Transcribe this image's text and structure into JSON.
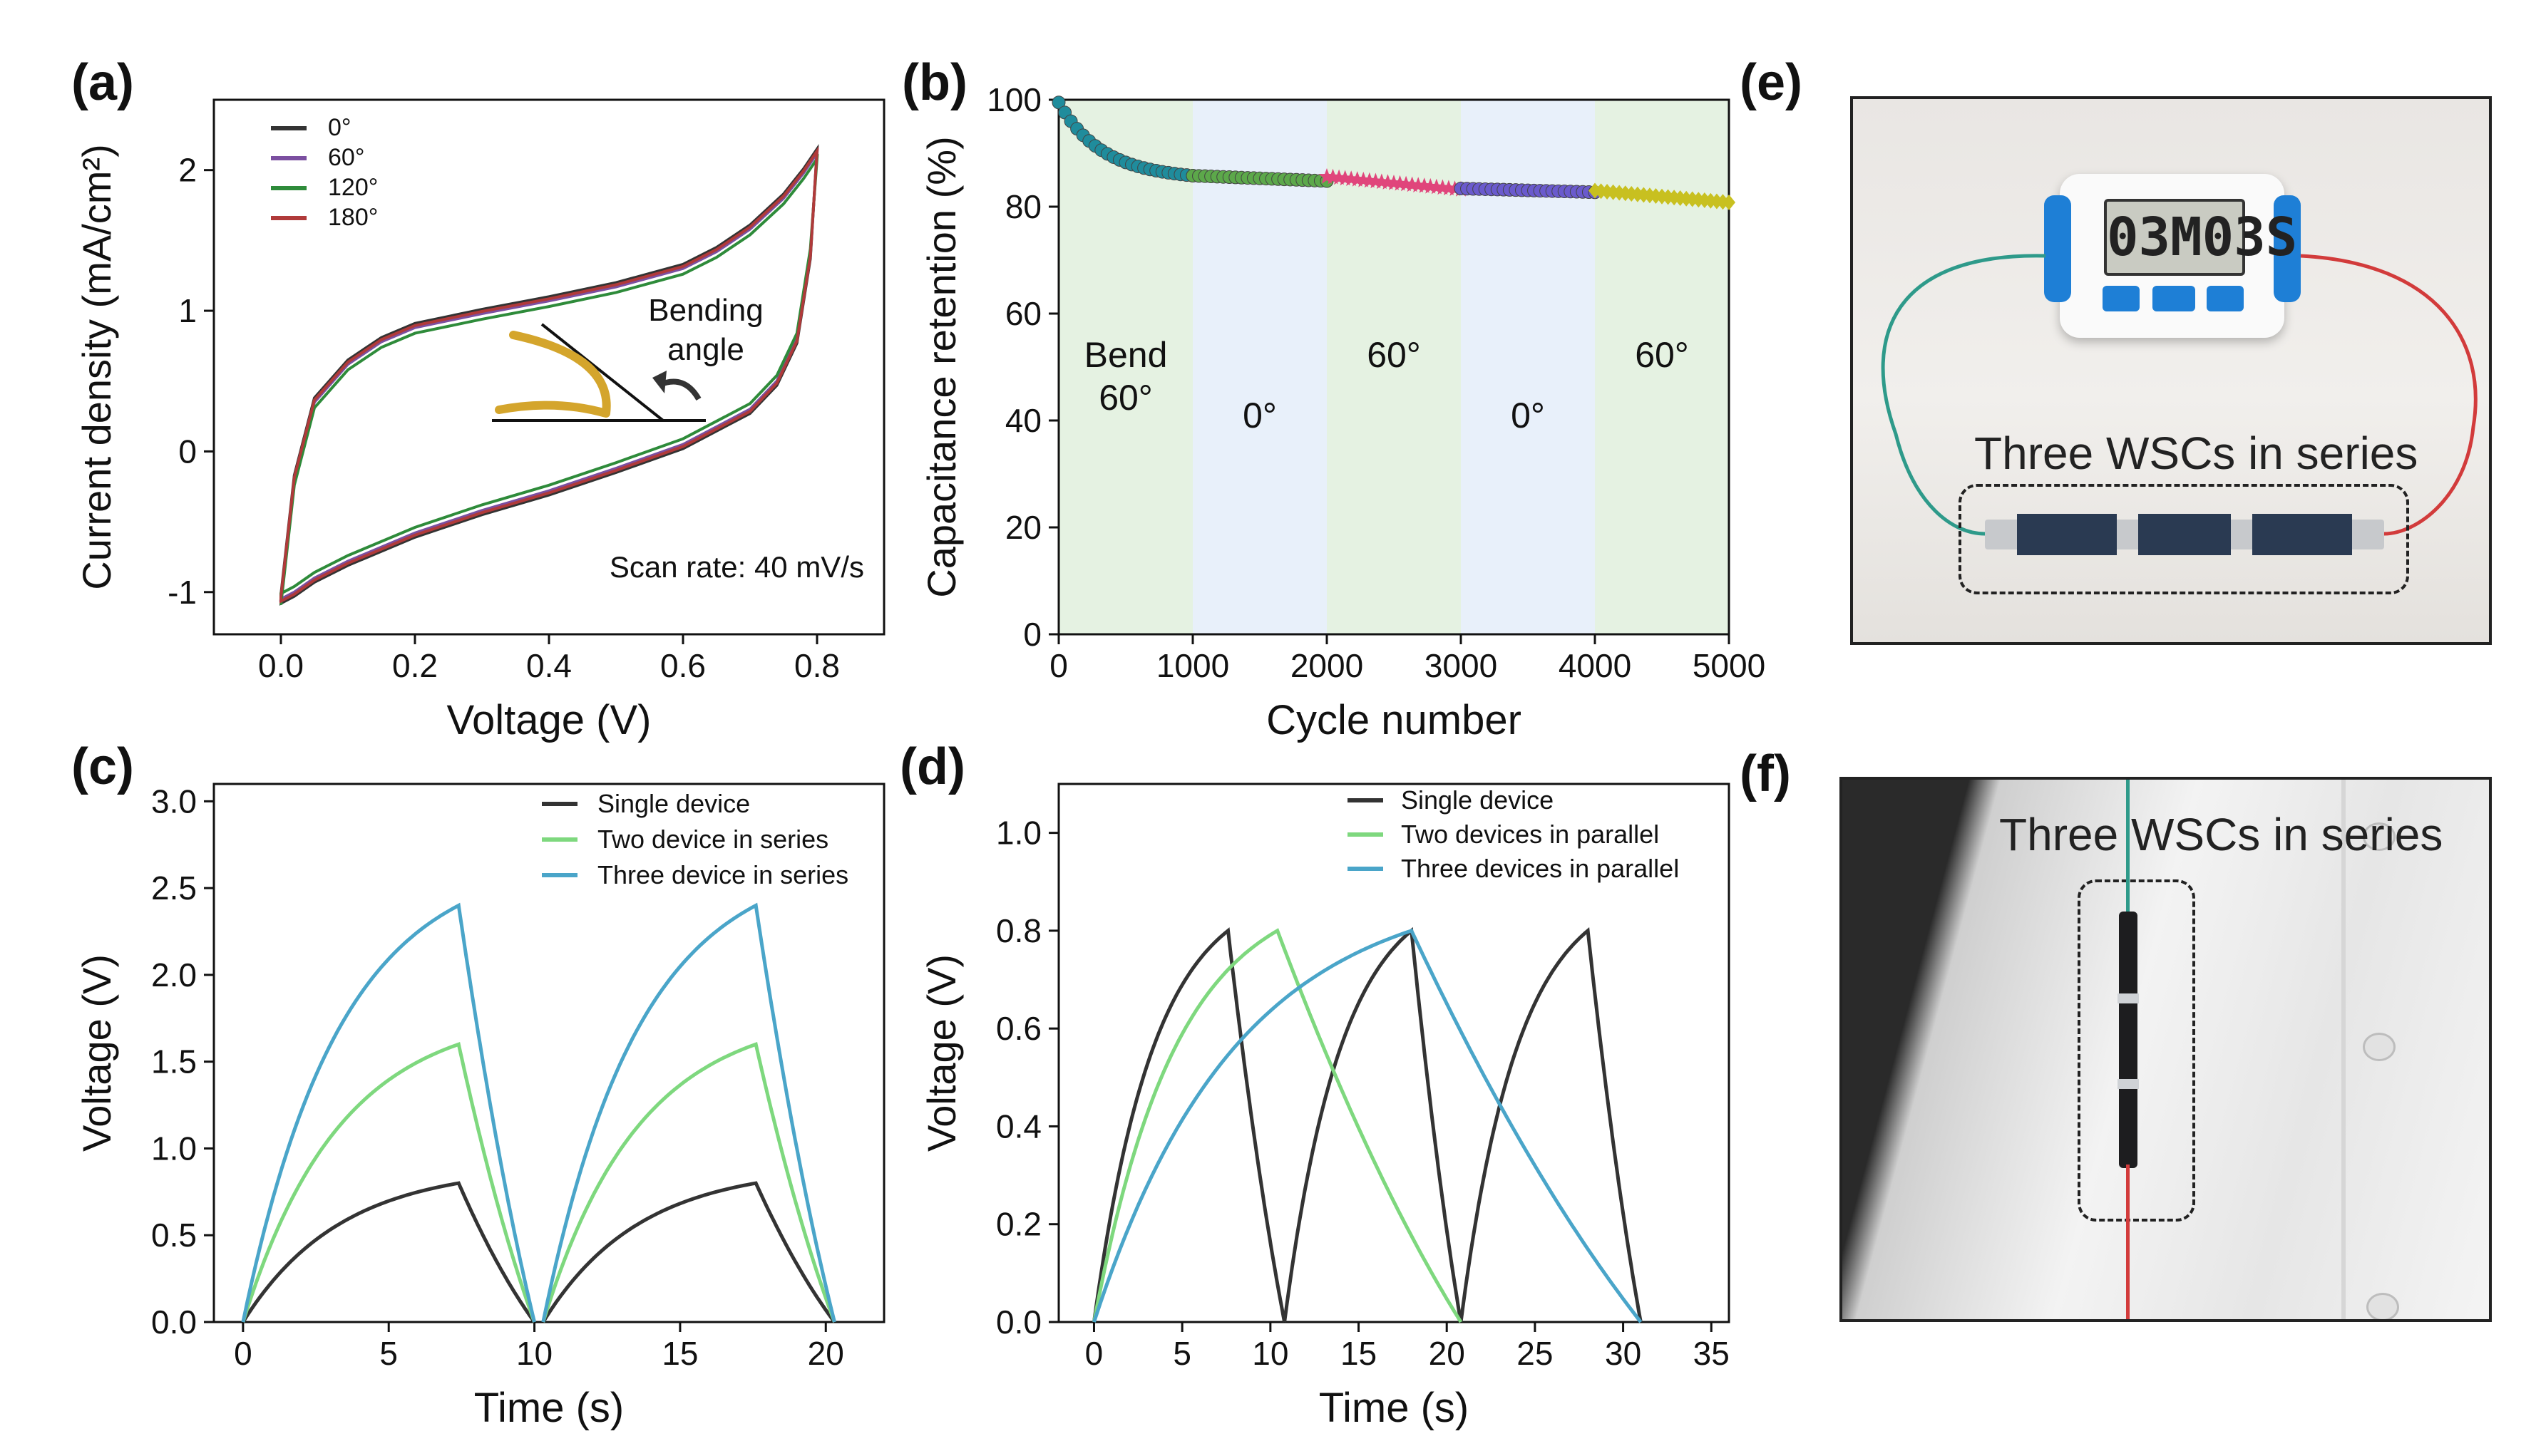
{
  "panel_labels": {
    "a": "(a)",
    "b": "(b)",
    "c": "(c)",
    "d": "(d)",
    "e": "(e)",
    "f": "(f)"
  },
  "chart_data": [
    {
      "id": "a",
      "type": "line",
      "xlabel": "Voltage (V)",
      "ylabel": "Current density (mA/cm²)",
      "xlim": [
        -0.1,
        0.9
      ],
      "ylim": [
        -1.3,
        2.5
      ],
      "xticks": [
        "0.0",
        "0.2",
        "0.4",
        "0.6",
        "0.8"
      ],
      "yticks": [
        "-1",
        "0",
        "1",
        "2"
      ],
      "legend_position": "top-left",
      "annotations": {
        "scan_rate": "Scan rate: 40 mV/s",
        "inset_line1": "Bending",
        "inset_line2": "angle"
      },
      "series": [
        {
          "name": "0°",
          "color": "#333333",
          "offset": 0.03
        },
        {
          "name": "60°",
          "color": "#7b4fa0",
          "offset": 0.0
        },
        {
          "name": "120°",
          "color": "#2e8b3a",
          "offset": -0.04
        },
        {
          "name": "180°",
          "color": "#b03a3a",
          "offset": 0.015
        }
      ],
      "cv_curve": {
        "upper_x": [
          0.0,
          0.02,
          0.05,
          0.1,
          0.15,
          0.2,
          0.3,
          0.4,
          0.5,
          0.6,
          0.65,
          0.7,
          0.75,
          0.78,
          0.8
        ],
        "upper_y": [
          -1.05,
          -0.2,
          0.35,
          0.62,
          0.78,
          0.88,
          0.98,
          1.07,
          1.17,
          1.3,
          1.42,
          1.58,
          1.8,
          1.98,
          2.12
        ],
        "lower_x": [
          0.8,
          0.79,
          0.77,
          0.74,
          0.7,
          0.6,
          0.5,
          0.4,
          0.3,
          0.2,
          0.1,
          0.05,
          0.02,
          0.0
        ],
        "lower_y": [
          2.12,
          1.4,
          0.8,
          0.5,
          0.3,
          0.05,
          -0.12,
          -0.28,
          -0.42,
          -0.58,
          -0.78,
          -0.9,
          -1.0,
          -1.05
        ]
      }
    },
    {
      "id": "b",
      "type": "scatter",
      "xlabel": "Cycle number",
      "ylabel": "Capacitance retention (%)",
      "xlim": [
        0,
        5000
      ],
      "ylim": [
        0,
        100
      ],
      "xticks": [
        "0",
        "1000",
        "2000",
        "3000",
        "4000",
        "5000"
      ],
      "yticks": [
        "0",
        "20",
        "40",
        "60",
        "80",
        "100"
      ],
      "regions": [
        {
          "x": [
            0,
            1000
          ],
          "color": "#e5f2e2",
          "label1": "Bend",
          "label2": "60°"
        },
        {
          "x": [
            1000,
            2000
          ],
          "color": "#e8f0fa",
          "label1": "0°",
          "label2": ""
        },
        {
          "x": [
            2000,
            3000
          ],
          "color": "#e5f2e2",
          "label1": "60°",
          "label2": ""
        },
        {
          "x": [
            3000,
            4000
          ],
          "color": "#e8f0fa",
          "label1": "0°",
          "label2": ""
        },
        {
          "x": [
            4000,
            5000
          ],
          "color": "#e5f2e2",
          "label1": "60°",
          "label2": ""
        }
      ],
      "series": [
        {
          "x": [
            0,
            1000
          ],
          "y_start": 99.5,
          "y_end": 85.8,
          "curve": "decay",
          "color": "#1f8c9c",
          "marker": "circle"
        },
        {
          "x": [
            1000,
            2000
          ],
          "y_start": 85.8,
          "y_end": 84.8,
          "curve": "linear",
          "color": "#5ca84a",
          "marker": "circle"
        },
        {
          "x": [
            2000,
            3000
          ],
          "y_start": 85.6,
          "y_end": 83.2,
          "curve": "linear",
          "color": "#e0457b",
          "marker": "star"
        },
        {
          "x": [
            3000,
            4000
          ],
          "y_start": 83.4,
          "y_end": 82.7,
          "curve": "linear",
          "color": "#6a5acd",
          "marker": "circle"
        },
        {
          "x": [
            4000,
            5000
          ],
          "y_start": 83.0,
          "y_end": 80.8,
          "curve": "linear",
          "color": "#c8c020",
          "marker": "diamond"
        }
      ]
    },
    {
      "id": "c",
      "type": "line",
      "xlabel": "Time (s)",
      "ylabel": "Voltage (V)",
      "xlim": [
        -1,
        22
      ],
      "ylim": [
        0,
        3.1
      ],
      "xticks": [
        "0",
        "5",
        "10",
        "15",
        "20"
      ],
      "yticks": [
        "0.0",
        "0.5",
        "1.0",
        "1.5",
        "2.0",
        "2.5",
        "3.0"
      ],
      "legend_position": "top-right",
      "series": [
        {
          "name": "Single device",
          "color": "#333333",
          "vmax": 0.8,
          "cycles": [
            [
              0,
              7.4,
              10.0
            ],
            [
              10.3,
              17.6,
              20.3
            ]
          ]
        },
        {
          "name": "Two device in series",
          "color": "#7ed87e",
          "vmax": 1.6,
          "cycles": [
            [
              0,
              7.4,
              10.0
            ],
            [
              10.3,
              17.6,
              20.3
            ]
          ]
        },
        {
          "name": "Three device in series",
          "color": "#4aa5c9",
          "vmax": 2.4,
          "cycles": [
            [
              0,
              7.4,
              10.0
            ],
            [
              10.3,
              17.6,
              20.3
            ]
          ]
        }
      ]
    },
    {
      "id": "d",
      "type": "line",
      "xlabel": "Time (s)",
      "ylabel": "Voltage (V)",
      "xlim": [
        -2,
        36
      ],
      "ylim": [
        0,
        1.1
      ],
      "xticks": [
        "0",
        "5",
        "10",
        "15",
        "20",
        "25",
        "30",
        "35"
      ],
      "yticks": [
        "0.0",
        "0.2",
        "0.4",
        "0.6",
        "0.8",
        "1.0"
      ],
      "legend_position": "top-right",
      "series": [
        {
          "name": "Single device",
          "color": "#333333",
          "vmax": 0.8,
          "cycles": [
            [
              0,
              7.6,
              10.8
            ],
            [
              10.8,
              18.0,
              20.8
            ],
            [
              20.8,
              28.0,
              31.0
            ]
          ]
        },
        {
          "name": "Two devices in parallel",
          "color": "#7ed87e",
          "vmax": 0.8,
          "cycles": [
            [
              0,
              10.4,
              20.8
            ]
          ]
        },
        {
          "name": "Three devices in parallel",
          "color": "#4aa5c9",
          "vmax": 0.8,
          "cycles": [
            [
              0,
              18.0,
              31.0
            ]
          ]
        }
      ]
    }
  ],
  "photos": {
    "e": {
      "caption": "Three WSCs in series",
      "timer_display": "03M03S",
      "timer_buttons": [
        "",
        "",
        ""
      ]
    },
    "f": {
      "caption": "Three WSCs in series"
    }
  }
}
